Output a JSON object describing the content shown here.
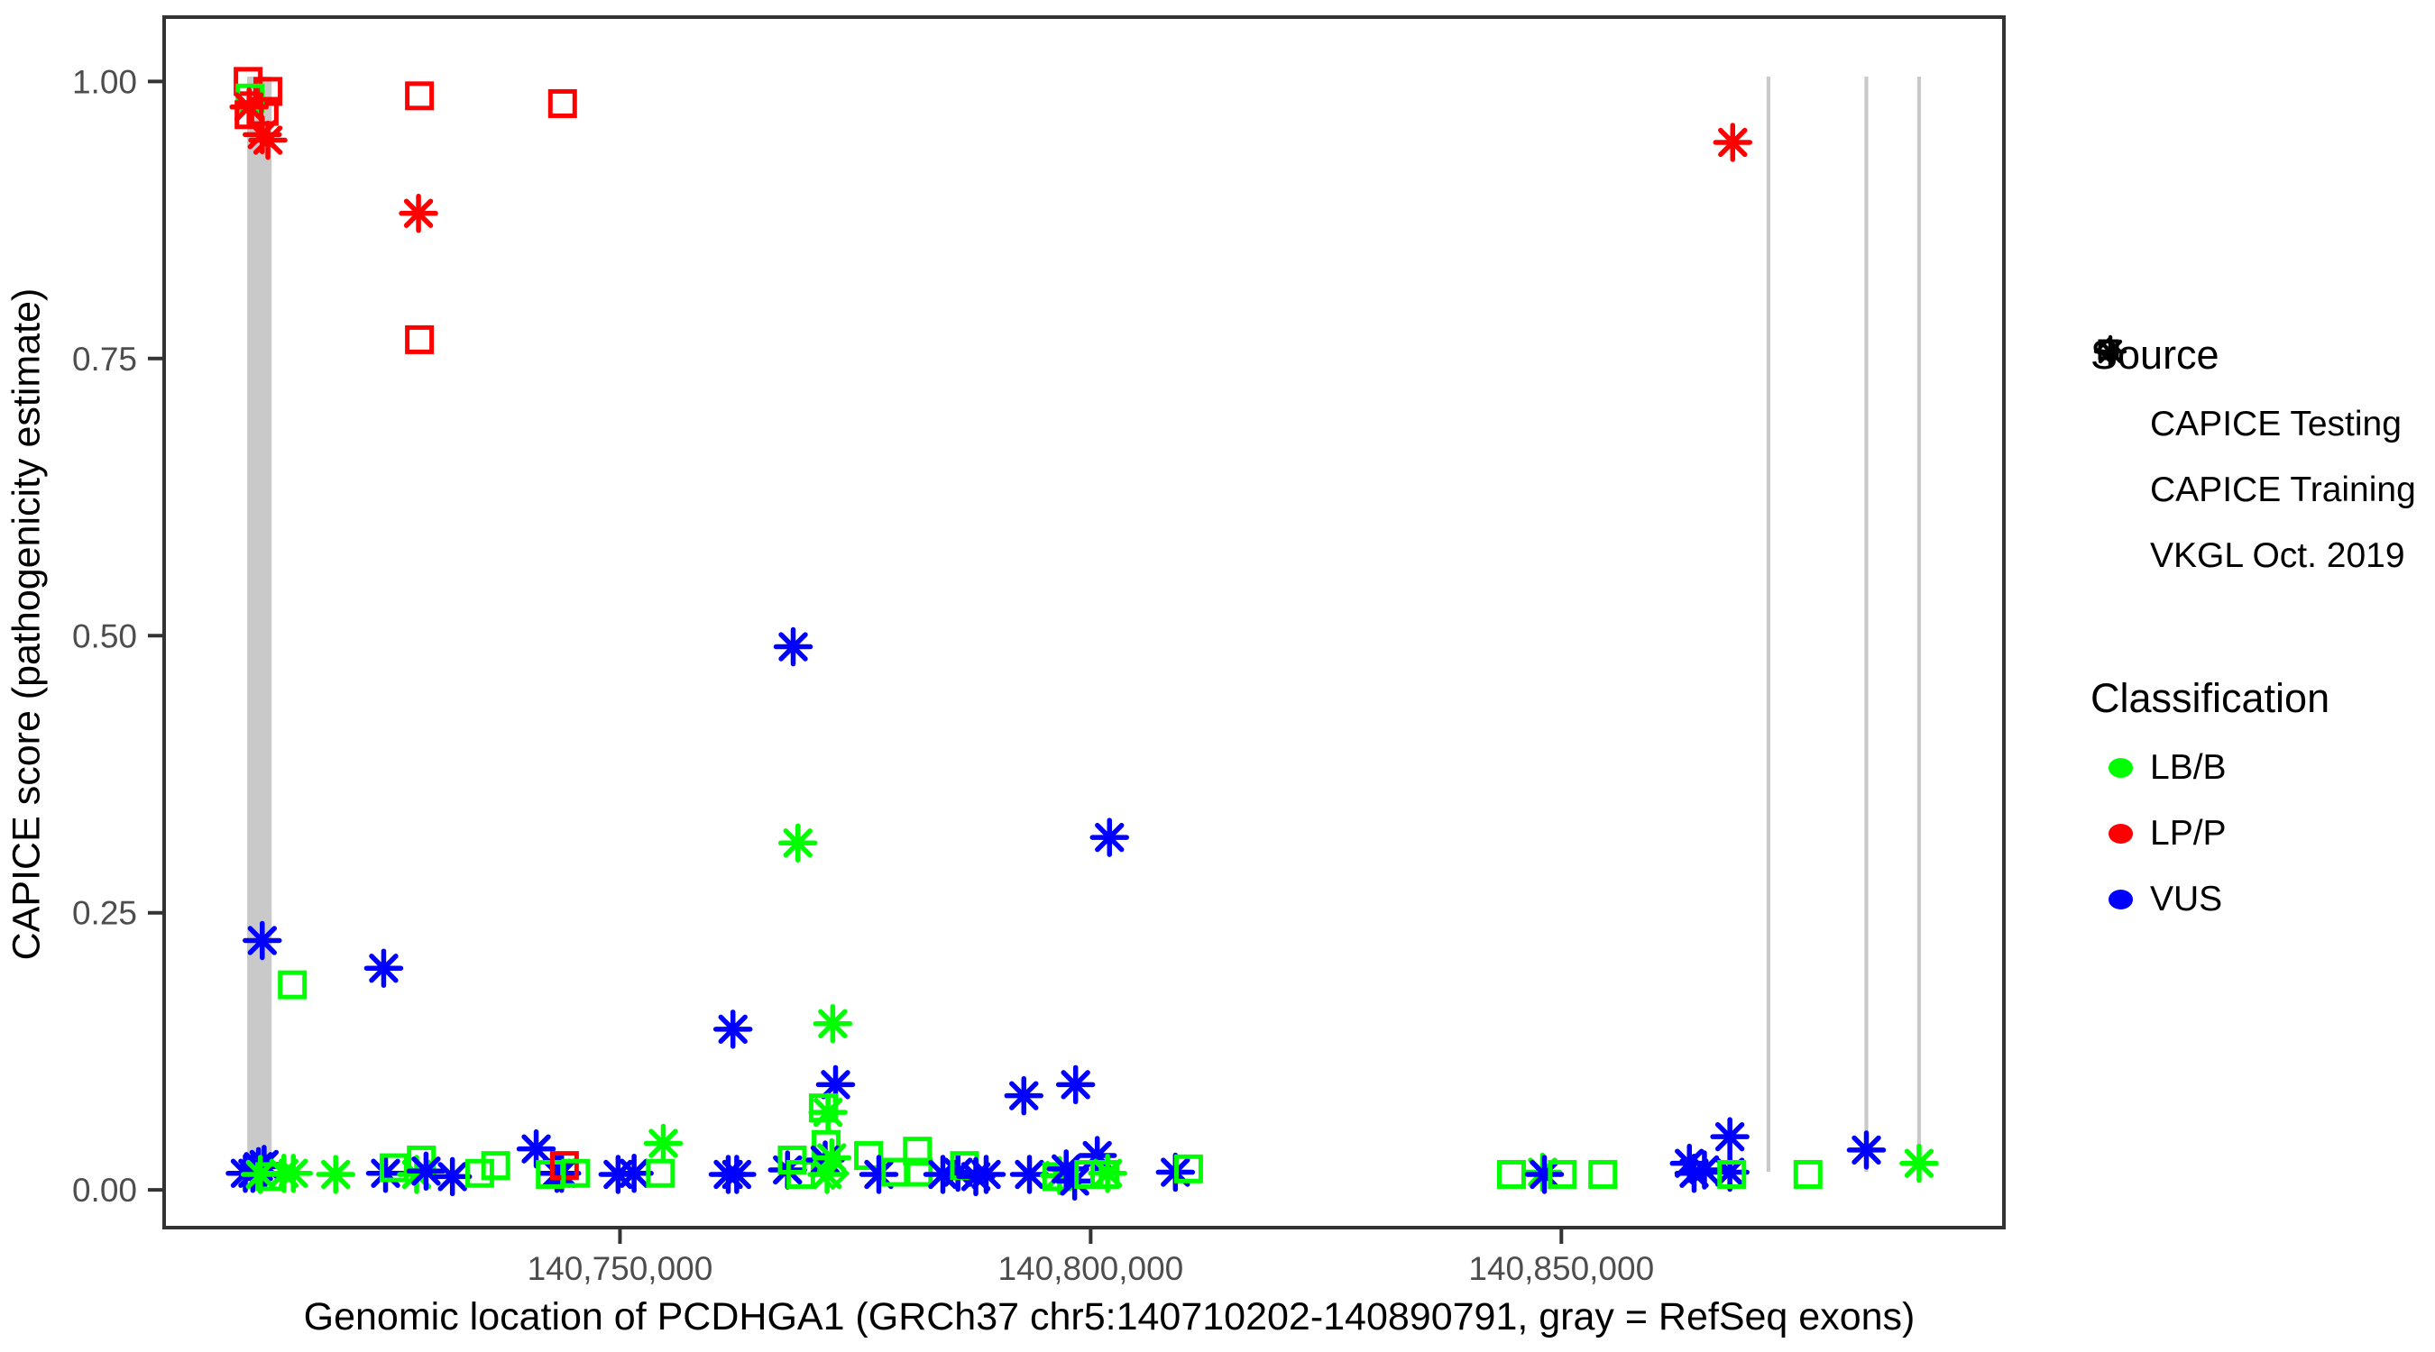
{
  "chart_data": {
    "type": "scatter",
    "title": "",
    "xlabel": "Genomic location of PCDHGA1 (GRCh37 chr5:140710202-140890791, gray = RefSeq exons)",
    "ylabel": "CAPICE score (pathogenicity estimate)",
    "xlim": [
      140701578,
      140897010
    ],
    "ylim": [
      -0.034,
      1.058
    ],
    "grid": "off",
    "x_ticks": [
      {
        "value": 140750000,
        "label": "140,750,000"
      },
      {
        "value": 140800000,
        "label": "140,800,000"
      },
      {
        "value": 140850000,
        "label": "140,850,000"
      }
    ],
    "y_ticks": [
      {
        "value": 0.0,
        "label": "0.00"
      },
      {
        "value": 0.25,
        "label": "0.25"
      },
      {
        "value": 0.5,
        "label": "0.50"
      },
      {
        "value": 0.75,
        "label": "0.75"
      },
      {
        "value": 1.0,
        "label": "1.00"
      }
    ],
    "exon_color": "#c9c9c9",
    "exons": [
      {
        "start": 140710400,
        "end": 140713000
      },
      {
        "start": 140871800,
        "end": 140872200
      },
      {
        "start": 140882200,
        "end": 140882600
      },
      {
        "start": 140887800,
        "end": 140888200
      }
    ],
    "source_marker_map": {
      "te": "diamond",
      "tr": "square",
      "vk": "asterisk"
    },
    "class_color_map": {
      "B": "#00ff00",
      "P": "#ff0000",
      "V": "#0000ff"
    },
    "points": [
      [
        140710500,
        1.0,
        "tr",
        "P"
      ],
      [
        140712600,
        0.991,
        "tr",
        "P"
      ],
      [
        140710700,
        0.985,
        "tr",
        "B"
      ],
      [
        140710600,
        0.977,
        "vk",
        "P"
      ],
      [
        140712200,
        0.973,
        "tr",
        "P"
      ],
      [
        140710600,
        0.97,
        "tr",
        "P"
      ],
      [
        140712000,
        0.952,
        "vk",
        "P"
      ],
      [
        140712600,
        0.947,
        "vk",
        "P"
      ],
      [
        140728700,
        0.987,
        "tr",
        "P"
      ],
      [
        140743900,
        0.98,
        "tr",
        "P"
      ],
      [
        140728600,
        0.881,
        "vk",
        "P"
      ],
      [
        140728700,
        0.767,
        "tr",
        "P"
      ],
      [
        140868200,
        0.945,
        "vk",
        "P"
      ],
      [
        140768400,
        0.49,
        "vk",
        "V"
      ],
      [
        140768900,
        0.313,
        "vk",
        "B"
      ],
      [
        140802000,
        0.318,
        "vk",
        "V"
      ],
      [
        140712000,
        0.225,
        "vk",
        "V"
      ],
      [
        140715200,
        0.185,
        "tr",
        "B"
      ],
      [
        140724900,
        0.2,
        "vk",
        "V"
      ],
      [
        140762000,
        0.145,
        "vk",
        "V"
      ],
      [
        140772600,
        0.15,
        "vk",
        "B"
      ],
      [
        140772900,
        0.095,
        "vk",
        "V"
      ],
      [
        140771600,
        0.074,
        "tr",
        "B"
      ],
      [
        140772100,
        0.07,
        "vk",
        "B"
      ],
      [
        140771900,
        0.041,
        "tr",
        "B"
      ],
      [
        140792900,
        0.085,
        "vk",
        "V"
      ],
      [
        140798400,
        0.095,
        "vk",
        "V"
      ],
      [
        140800700,
        0.031,
        "vk",
        "V"
      ],
      [
        140741100,
        0.037,
        "vk",
        "V"
      ],
      [
        140754600,
        0.042,
        "vk",
        "B"
      ],
      [
        140882400,
        0.036,
        "vk",
        "V"
      ],
      [
        140888000,
        0.024,
        "vk",
        "B"
      ],
      [
        140867900,
        0.048,
        "vk",
        "V"
      ],
      [
        140710200,
        0.015,
        "vk",
        "V"
      ],
      [
        140711000,
        0.015,
        "vk",
        "V"
      ],
      [
        140711600,
        0.021,
        "vk",
        "V"
      ],
      [
        140712200,
        0.023,
        "vk",
        "V"
      ],
      [
        140711800,
        0.014,
        "vk",
        "B"
      ],
      [
        140712800,
        0.012,
        "tr",
        "B"
      ],
      [
        140714300,
        0.015,
        "vk",
        "B"
      ],
      [
        140715300,
        0.015,
        "vk",
        "B"
      ],
      [
        140719800,
        0.014,
        "vk",
        "B"
      ],
      [
        140725100,
        0.015,
        "vk",
        "V"
      ],
      [
        140726000,
        0.02,
        "tr",
        "B"
      ],
      [
        140728400,
        0.014,
        "vk",
        "B"
      ],
      [
        140728900,
        0.027,
        "tr",
        "B"
      ],
      [
        140729400,
        0.017,
        "vk",
        "V"
      ],
      [
        140732200,
        0.012,
        "vk",
        "V"
      ],
      [
        140735100,
        0.015,
        "tr",
        "B"
      ],
      [
        140736800,
        0.022,
        "tr",
        "B"
      ],
      [
        140743300,
        0.015,
        "vk",
        "V"
      ],
      [
        140743800,
        0.015,
        "vk",
        "V"
      ],
      [
        140742600,
        0.014,
        "tr",
        "B"
      ],
      [
        140744100,
        0.022,
        "tr",
        "P"
      ],
      [
        140745300,
        0.015,
        "tr",
        "B"
      ],
      [
        140749800,
        0.014,
        "vk",
        "V"
      ],
      [
        140751500,
        0.015,
        "vk",
        "V"
      ],
      [
        140754300,
        0.015,
        "tr",
        "B"
      ],
      [
        140761500,
        0.014,
        "vk",
        "V"
      ],
      [
        140762400,
        0.014,
        "vk",
        "V"
      ],
      [
        140767800,
        0.018,
        "vk",
        "V"
      ],
      [
        140768300,
        0.027,
        "tr",
        "B"
      ],
      [
        140769200,
        0.014,
        "tr",
        "B"
      ],
      [
        140771800,
        0.027,
        "vk",
        "V"
      ],
      [
        140772500,
        0.029,
        "vk",
        "B"
      ],
      [
        140772000,
        0.014,
        "vk",
        "B"
      ],
      [
        140772600,
        0.015,
        "te",
        "B"
      ],
      [
        140776400,
        0.031,
        "tr",
        "B"
      ],
      [
        140777500,
        0.014,
        "vk",
        "V"
      ],
      [
        140779300,
        0.016,
        "tr",
        "B"
      ],
      [
        140781600,
        0.035,
        "tr",
        "B"
      ],
      [
        140781700,
        0.016,
        "tr",
        "B"
      ],
      [
        140784300,
        0.014,
        "vk",
        "V"
      ],
      [
        140785900,
        0.016,
        "vk",
        "V"
      ],
      [
        140786600,
        0.022,
        "tr",
        "B"
      ],
      [
        140787800,
        0.012,
        "vk",
        "V"
      ],
      [
        140788900,
        0.014,
        "vk",
        "V"
      ],
      [
        140793500,
        0.014,
        "vk",
        "V"
      ],
      [
        140796400,
        0.012,
        "tr",
        "B"
      ],
      [
        140796700,
        0.013,
        "vk",
        "B"
      ],
      [
        140797400,
        0.019,
        "vk",
        "V"
      ],
      [
        140798300,
        0.008,
        "vk",
        "V"
      ],
      [
        140799800,
        0.014,
        "tr",
        "B"
      ],
      [
        140801500,
        0.014,
        "tr",
        "B"
      ],
      [
        140801800,
        0.015,
        "vk",
        "B"
      ],
      [
        140809000,
        0.016,
        "vk",
        "V"
      ],
      [
        140810400,
        0.019,
        "tr",
        "B"
      ],
      [
        140844700,
        0.014,
        "tr",
        "B"
      ],
      [
        140848000,
        0.016,
        "vk",
        "B"
      ],
      [
        140848200,
        0.014,
        "vk",
        "V"
      ],
      [
        140850100,
        0.014,
        "tr",
        "B"
      ],
      [
        140854400,
        0.014,
        "tr",
        "B"
      ],
      [
        140863600,
        0.024,
        "vk",
        "V"
      ],
      [
        140864100,
        0.015,
        "vk",
        "V"
      ],
      [
        140865200,
        0.018,
        "vk",
        "V"
      ],
      [
        140867900,
        0.016,
        "vk",
        "V"
      ],
      [
        140868100,
        0.014,
        "tr",
        "B"
      ],
      [
        140876200,
        0.014,
        "tr",
        "B"
      ]
    ]
  },
  "legend": {
    "source": {
      "title": "Source",
      "items": [
        {
          "label": "CAPICE Testing",
          "marker": "diamond"
        },
        {
          "label": "CAPICE Training",
          "marker": "square"
        },
        {
          "label": "VKGL Oct. 2019",
          "marker": "asterisk"
        }
      ]
    },
    "classification": {
      "title": "Classification",
      "items": [
        {
          "label": "LB/B",
          "color": "#00ff00"
        },
        {
          "label": "LP/P",
          "color": "#ff0000"
        },
        {
          "label": "VUS",
          "color": "#0000ff"
        }
      ]
    }
  }
}
